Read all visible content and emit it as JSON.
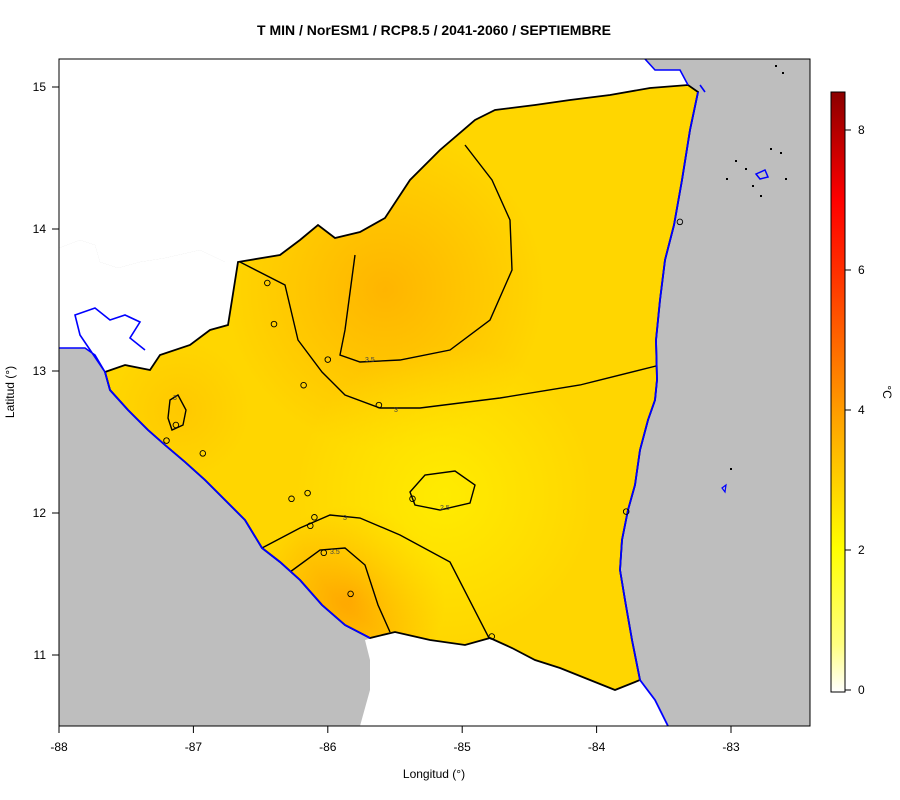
{
  "title": "T MIN / NorESM1 / RCP8.5 / 2041-2060 / SEPTIEMBRE",
  "x_axis": {
    "label": "Longitud (°)",
    "ticks": [
      "-88",
      "-87",
      "-86",
      "-85",
      "-84",
      "-83"
    ]
  },
  "y_axis": {
    "label": "Latitud (°)",
    "ticks": [
      "15",
      "14",
      "13",
      "12",
      "11"
    ]
  },
  "legend": {
    "unit": "°C",
    "ticks": [
      "8",
      "6",
      "4",
      "2",
      "0"
    ],
    "range": [
      0,
      8.55
    ],
    "placement": "right",
    "colors": [
      "#ffffff",
      "#ffff00",
      "#ffa500",
      "#ff0000",
      "#8b0000"
    ]
  },
  "contour_labels": [
    "3",
    "3.5",
    "3",
    "2.5",
    "3",
    "3.5"
  ],
  "map_colors": {
    "land_value_base": "#ffdc00",
    "sea_and_neighbors": "#bebebe",
    "lake_and_coast_outline": "#0000ff",
    "border_outline": "#000000"
  },
  "chart_data": {
    "type": "heatmap",
    "title": "T MIN / NorESM1 / RCP8.5 / 2041-2060 / SEPTIEMBRE",
    "xlabel": "Longitud (°)",
    "ylabel": "Latitud (°)",
    "xlim": [
      -88,
      -82.6
    ],
    "ylim": [
      10.5,
      15.2
    ],
    "color_scale": {
      "unit": "°C",
      "min": 0,
      "max": 8.55,
      "ticks": [
        0,
        2,
        4,
        6,
        8
      ]
    },
    "contours": [
      {
        "level": 3.5,
        "region": "north-central"
      },
      {
        "level": 3.0,
        "region": "northwest"
      },
      {
        "level": 2.5,
        "region": "center"
      },
      {
        "level": 3.0,
        "region": "southwest"
      },
      {
        "level": 3.5,
        "region": "southwest coast"
      }
    ],
    "stations": [
      {
        "lon": -86.45,
        "lat": 13.62
      },
      {
        "lon": -86.4,
        "lat": 13.33
      },
      {
        "lon": -86.0,
        "lat": 13.08
      },
      {
        "lon": -86.18,
        "lat": 12.9
      },
      {
        "lon": -85.62,
        "lat": 12.76
      },
      {
        "lon": -87.13,
        "lat": 12.62
      },
      {
        "lon": -87.2,
        "lat": 12.51
      },
      {
        "lon": -86.93,
        "lat": 12.42
      },
      {
        "lon": -86.27,
        "lat": 12.1
      },
      {
        "lon": -86.15,
        "lat": 12.14
      },
      {
        "lon": -85.37,
        "lat": 12.1
      },
      {
        "lon": -86.1,
        "lat": 11.97
      },
      {
        "lon": -86.13,
        "lat": 11.91
      },
      {
        "lon": -86.03,
        "lat": 11.72
      },
      {
        "lon": -85.83,
        "lat": 11.43
      },
      {
        "lon": -84.78,
        "lat": 11.13
      },
      {
        "lon": -83.78,
        "lat": 12.01
      },
      {
        "lon": -83.38,
        "lat": 14.05
      }
    ]
  }
}
